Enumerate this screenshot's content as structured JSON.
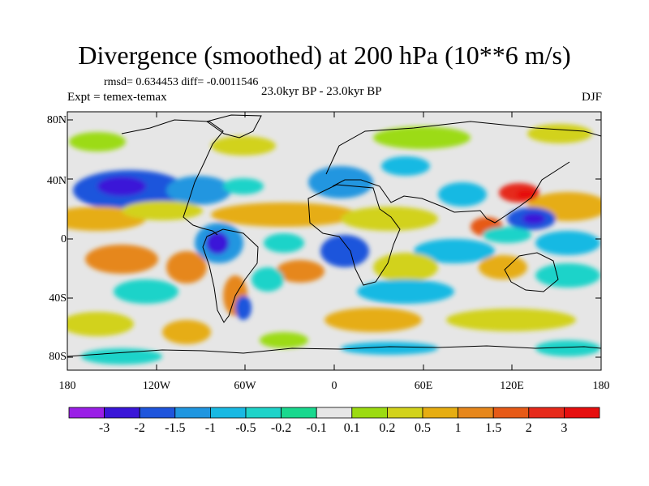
{
  "title": "Divergence (smoothed) at 200 hPa (10**6 m/s)",
  "stats_line": "rmsd= 0.634453 diff= -0.0011546",
  "experiment_line": "Expt = temex-temax",
  "period_line": "23.0kyr BP - 23.0kyr BP",
  "season": "DJF",
  "lat_labels": [
    "80N",
    "40N",
    "0",
    "40S",
    "80S"
  ],
  "lon_labels": [
    "180",
    "120W",
    "60W",
    "0",
    "60E",
    "120E",
    "180"
  ],
  "colorbar": {
    "labels": [
      "-3",
      "-2",
      "-1.5",
      "-1",
      "-0.5",
      "-0.2",
      "-0.1",
      "0.1",
      "0.2",
      "0.5",
      "1",
      "1.5",
      "2",
      "3"
    ],
    "colors": [
      "#9a1fe6",
      "#3a16d8",
      "#1f55dc",
      "#2096e0",
      "#19b9e3",
      "#1fd3c9",
      "#19d88e",
      "#e6e6e6",
      "#9cdb12",
      "#d2d21c",
      "#e6ad12",
      "#e6871c",
      "#e65a17",
      "#e62a1a",
      "#e60f0f"
    ]
  }
}
